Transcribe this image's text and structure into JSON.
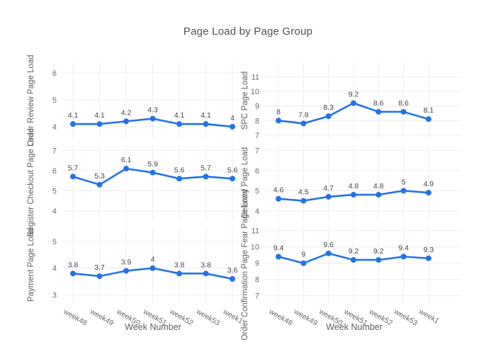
{
  "chart_data": {
    "type": "line",
    "title": "Page Load by Page Group",
    "x_title": "Week Number",
    "categories": [
      "week48",
      "week49",
      "week50",
      "week51",
      "week52",
      "week53",
      "week1"
    ],
    "grid": true,
    "legend": "none",
    "line_color": "#2373e8",
    "subplots": [
      {
        "name": "Order Review Page Load",
        "row": 0,
        "col": 0,
        "values": [
          4.1,
          4.1,
          4.2,
          4.3,
          4.1,
          4.1,
          4
        ],
        "yticks": [
          4,
          5,
          6
        ],
        "ylim": [
          3.55,
          6.4
        ]
      },
      {
        "name": "SPC Page Load",
        "row": 0,
        "col": 1,
        "values": [
          8,
          7.8,
          8.3,
          9.2,
          8.6,
          8.6,
          8.1
        ],
        "yticks": [
          7,
          8,
          9,
          10,
          11
        ],
        "ylim": [
          6.75,
          12.0
        ]
      },
      {
        "name": "Register Checkout Page Load",
        "row": 1,
        "col": 0,
        "values": [
          5.7,
          5.3,
          6.1,
          5.9,
          5.6,
          5.7,
          5.6
        ],
        "yticks": [
          4,
          5,
          6,
          7
        ],
        "ylim": [
          3.5,
          7.3
        ]
      },
      {
        "name": "Delivery Page Load",
        "row": 1,
        "col": 1,
        "values": [
          4.6,
          4.5,
          4.7,
          4.8,
          4.8,
          5,
          4.9
        ],
        "yticks": [
          4,
          5,
          6,
          7
        ],
        "ylim": [
          3.5,
          7.3
        ]
      },
      {
        "name": "Payment Page Load",
        "row": 2,
        "col": 0,
        "values": [
          3.8,
          3.7,
          3.9,
          4,
          3.8,
          3.8,
          3.6
        ],
        "yticks": [
          3,
          4,
          5
        ],
        "ylim": [
          2.7,
          5.55
        ]
      },
      {
        "name": "Order Confirmation Page Fear Page Load",
        "row": 2,
        "col": 1,
        "values": [
          9.4,
          9,
          9.6,
          9.2,
          9.2,
          9.4,
          9.3
        ],
        "yticks": [
          7,
          8,
          9,
          10,
          11
        ],
        "ylim": [
          6.55,
          11.25
        ]
      }
    ]
  },
  "colors": {
    "line": "#2373e8",
    "grid": "#efeff1",
    "tick_text": "#696a6e",
    "value_label_text": "#42454a",
    "axis_title_text": "#5c5e63",
    "title_text": "#4c4f55",
    "background": "#ffffff"
  }
}
